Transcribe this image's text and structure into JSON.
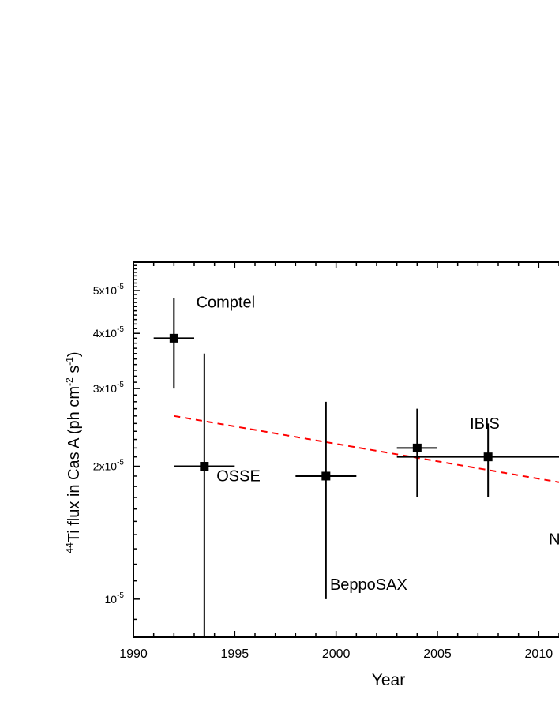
{
  "chart_data": {
    "type": "scatter",
    "title": "",
    "xlabel": "Year",
    "ylabel": {
      "pre_sup": "44",
      "main": "Ti flux in Cas A (ph cm",
      "sup1": "-2",
      "mid": " s",
      "sup2": "-1",
      "end": ")"
    },
    "xlim": [
      1990,
      2011
    ],
    "ylim": [
      8.2e-06,
      5.8e-05
    ],
    "y_scale": "log",
    "x_ticks": [
      1990,
      1995,
      2000,
      2005,
      2010
    ],
    "x_tick_labels": [
      "1990",
      "1995",
      "2000",
      "2005",
      "2010"
    ],
    "y_ticks": [
      {
        "value": 1e-05,
        "mant": "10",
        "exp": "-5"
      },
      {
        "value": 2e-05,
        "mant": "2x10",
        "exp": "-5"
      },
      {
        "value": 3e-05,
        "mant": "3x10",
        "exp": "-5"
      },
      {
        "value": 4e-05,
        "mant": "4x10",
        "exp": "-5"
      },
      {
        "value": 5e-05,
        "mant": "5x10",
        "exp": "-5"
      }
    ],
    "points": [
      {
        "label": "Comptel",
        "x": 1992.0,
        "xerr": [
          1991.0,
          1993.0
        ],
        "y": 3.9e-05,
        "yerr": [
          3e-05,
          4.8e-05
        ]
      },
      {
        "label": "OSSE",
        "x": 1993.5,
        "xerr": [
          1992.0,
          1995.0
        ],
        "y": 2e-05,
        "yerr": [
          8.2e-06,
          3.6e-05
        ]
      },
      {
        "label": "BeppoSAX",
        "x": 1999.5,
        "xerr": [
          1998.0,
          2001.0
        ],
        "y": 1.9e-05,
        "yerr": [
          1e-05,
          2.8e-05
        ]
      },
      {
        "label": "",
        "x": 2004.0,
        "xerr": [
          2003.0,
          2005.0
        ],
        "y": 2.2e-05,
        "yerr": [
          1.7e-05,
          2.7e-05
        ]
      },
      {
        "label": "IBIS",
        "x": 2007.5,
        "xerr": [
          2003.0,
          2011.0
        ],
        "y": 2.1e-05,
        "yerr": [
          1.7e-05,
          2.5e-05
        ]
      }
    ],
    "fit_line": {
      "color": "#ff0000",
      "style": "dashed",
      "x": [
        1992,
        2011
      ],
      "y": [
        2.6e-05,
        1.84e-05
      ]
    },
    "annotations": [
      {
        "text": "Comptel",
        "x": 1993.1,
        "y": 4.58e-05
      },
      {
        "text": "OSSE",
        "x": 1994.1,
        "y": 1.85e-05
      },
      {
        "text": "BeppoSAX",
        "x": 1999.7,
        "y": 1.05e-05
      },
      {
        "text": "IBIS",
        "x": 2006.6,
        "y": 2.43e-05
      },
      {
        "text": "N",
        "x": 2010.5,
        "y": 1.33e-05
      }
    ],
    "grid": false,
    "marker_color": "#000000"
  }
}
